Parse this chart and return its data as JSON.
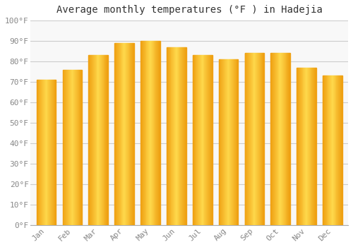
{
  "title": "Average monthly temperatures (°F ) in Hadejia",
  "months": [
    "Jan",
    "Feb",
    "Mar",
    "Apr",
    "May",
    "Jun",
    "Jul",
    "Aug",
    "Sep",
    "Oct",
    "Nov",
    "Dec"
  ],
  "values": [
    71,
    76,
    83,
    89,
    90,
    87,
    83,
    81,
    84,
    84,
    77,
    73
  ],
  "bar_color_main": "#F5A623",
  "bar_color_light": "#FFD966",
  "ylim": [
    0,
    100
  ],
  "yticks": [
    0,
    10,
    20,
    30,
    40,
    50,
    60,
    70,
    80,
    90,
    100
  ],
  "ytick_labels": [
    "0°F",
    "10°F",
    "20°F",
    "30°F",
    "40°F",
    "50°F",
    "60°F",
    "70°F",
    "80°F",
    "90°F",
    "100°F"
  ],
  "grid_color": "#cccccc",
  "background_color": "#ffffff",
  "plot_bg_color": "#f8f8f8",
  "title_fontsize": 10,
  "tick_fontsize": 8,
  "font_family": "monospace",
  "bar_width": 0.75,
  "bar_gap_color": "#ffffff"
}
